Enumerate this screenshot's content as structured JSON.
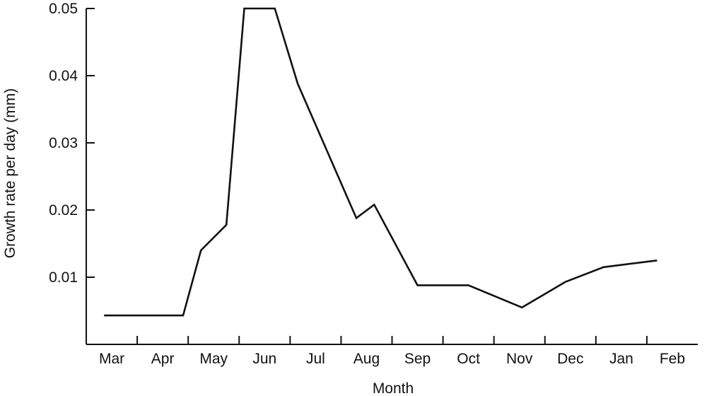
{
  "chart_data": {
    "type": "line",
    "xlabel": "Month",
    "ylabel": "Growth rate per day (mm)",
    "x_tick_labels": [
      "Mar",
      "Apr",
      "May",
      "Jun",
      "Jul",
      "Aug",
      "Sep",
      "Oct",
      "Nov",
      "Dec",
      "Jan",
      "Feb"
    ],
    "y_tick_labels": [
      "0.01",
      "0.02",
      "0.03",
      "0.04",
      "0.05"
    ],
    "y_ticks": [
      0.01,
      0.02,
      0.03,
      0.04,
      0.05
    ],
    "xlim": [
      0,
      12
    ],
    "ylim": [
      0,
      0.05
    ],
    "grid": false,
    "series": [
      {
        "x": [
          0.35,
          1.9,
          2.25,
          2.75,
          3.1,
          3.7,
          4.15,
          5.3,
          5.65,
          6.5,
          7.5,
          8.55,
          9.4,
          10.15,
          11.2
        ],
        "values": [
          0.0043,
          0.0043,
          0.014,
          0.0178,
          0.05,
          0.05,
          0.0388,
          0.0188,
          0.0208,
          0.0088,
          0.0088,
          0.0055,
          0.0093,
          0.0115,
          0.0125
        ]
      }
    ]
  }
}
